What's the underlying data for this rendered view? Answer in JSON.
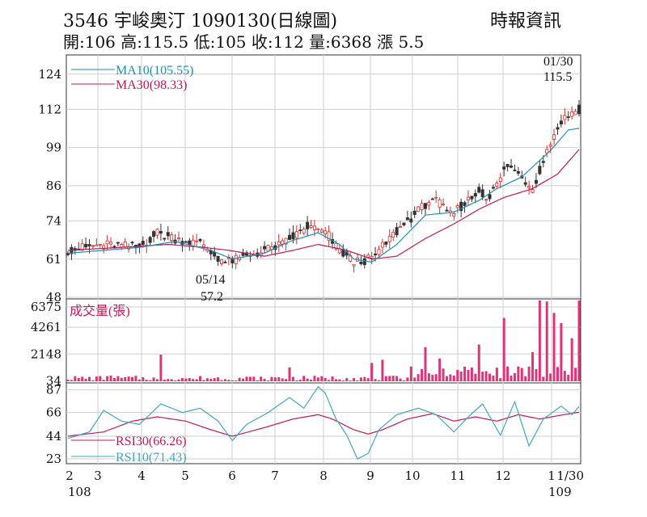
{
  "header": {
    "title": "3546  宇峻奧汀 1090130(日線圖)",
    "source": "時報資訊",
    "stats": "開:106 高:115.5 低:105 收:112 量:6368 漲 5.5"
  },
  "colors": {
    "ma10": "#1f8fb0",
    "ma30": "#c2185b",
    "volume": "#e0347a",
    "rsi30": "#c2185b",
    "rsi10": "#3fa7c2",
    "candle_up": "#d32f2f",
    "candle_down": "#333333",
    "grid": "#cfcfcf"
  },
  "chart_data": [
    {
      "type": "candlestick",
      "legend": [
        "MA10(105.55)",
        "MA30(98.33)"
      ],
      "ylim": [
        48,
        130
      ],
      "yticks": [
        "124",
        "112",
        "99",
        "86",
        "74",
        "61",
        "48"
      ],
      "annotations": [
        {
          "date_label": "01/30",
          "value_label": "115.5",
          "note": "high"
        },
        {
          "date_label": "05/14",
          "value_label": "57.2",
          "note": "low"
        }
      ],
      "anchors": [
        [
          0,
          64
        ],
        [
          10,
          66
        ],
        [
          20,
          65
        ],
        [
          25,
          70
        ],
        [
          30,
          68
        ],
        [
          38,
          66
        ],
        [
          40,
          63
        ],
        [
          44,
          60
        ],
        [
          48,
          61
        ],
        [
          55,
          64
        ],
        [
          60,
          66
        ],
        [
          67,
          72
        ],
        [
          70,
          71
        ],
        [
          73,
          69
        ],
        [
          75,
          65
        ],
        [
          80,
          60
        ],
        [
          85,
          61
        ],
        [
          90,
          68
        ],
        [
          95,
          74
        ],
        [
          102,
          82
        ],
        [
          107,
          76
        ],
        [
          110,
          79
        ],
        [
          115,
          84
        ],
        [
          118,
          82
        ],
        [
          123,
          93
        ],
        [
          127,
          89
        ],
        [
          130,
          85
        ],
        [
          135,
          101
        ],
        [
          138,
          108
        ],
        [
          141,
          111
        ],
        [
          143,
          112
        ]
      ],
      "ma10_anchors": [
        [
          0,
          63
        ],
        [
          20,
          65
        ],
        [
          30,
          67
        ],
        [
          40,
          64
        ],
        [
          46,
          61
        ],
        [
          55,
          63
        ],
        [
          62,
          67
        ],
        [
          70,
          70
        ],
        [
          76,
          66
        ],
        [
          80,
          61
        ],
        [
          85,
          60
        ],
        [
          92,
          66
        ],
        [
          100,
          76
        ],
        [
          108,
          77
        ],
        [
          115,
          81
        ],
        [
          120,
          85
        ],
        [
          127,
          89
        ],
        [
          135,
          98
        ],
        [
          140,
          105
        ],
        [
          143,
          105.55
        ]
      ],
      "ma30_anchors": [
        [
          0,
          64
        ],
        [
          15,
          65
        ],
        [
          28,
          66
        ],
        [
          38,
          65
        ],
        [
          45,
          64
        ],
        [
          55,
          62
        ],
        [
          63,
          64
        ],
        [
          70,
          66
        ],
        [
          78,
          64
        ],
        [
          85,
          61
        ],
        [
          92,
          62
        ],
        [
          100,
          68
        ],
        [
          108,
          73
        ],
        [
          115,
          78
        ],
        [
          122,
          82
        ],
        [
          130,
          85
        ],
        [
          137,
          90
        ],
        [
          143,
          98.33
        ]
      ]
    },
    {
      "type": "bar",
      "title": "成交量(張)",
      "ylim": [
        0,
        6375
      ],
      "yticks": [
        "6375",
        "4261",
        "2148",
        "34"
      ],
      "values_by_day": [
        [
          0,
          120
        ],
        [
          12,
          450
        ],
        [
          25,
          160
        ],
        [
          26,
          2100
        ],
        [
          35,
          180
        ],
        [
          55,
          200
        ],
        [
          62,
          1100
        ],
        [
          78,
          250
        ],
        [
          85,
          1450
        ],
        [
          88,
          1700
        ],
        [
          95,
          300
        ],
        [
          100,
          2700
        ],
        [
          104,
          1800
        ],
        [
          108,
          450
        ],
        [
          112,
          900
        ],
        [
          115,
          2900
        ],
        [
          122,
          5000
        ],
        [
          130,
          2300
        ],
        [
          132,
          6375
        ],
        [
          134,
          6300
        ],
        [
          136,
          5400
        ],
        [
          138,
          4600
        ],
        [
          141,
          3400
        ],
        [
          143,
          6368
        ]
      ]
    },
    {
      "type": "line",
      "legend": [
        "RSI30(66.26)",
        "RSI10(71.43)"
      ],
      "ylim": [
        20,
        92
      ],
      "yticks": [
        "87",
        "66",
        "44",
        "23"
      ],
      "rsi30_anchors": [
        [
          0,
          44
        ],
        [
          10,
          48
        ],
        [
          18,
          58
        ],
        [
          25,
          62
        ],
        [
          33,
          58
        ],
        [
          40,
          50
        ],
        [
          46,
          44
        ],
        [
          55,
          52
        ],
        [
          63,
          60
        ],
        [
          70,
          64
        ],
        [
          74,
          60
        ],
        [
          80,
          50
        ],
        [
          84,
          46
        ],
        [
          88,
          50
        ],
        [
          95,
          60
        ],
        [
          102,
          65
        ],
        [
          108,
          58
        ],
        [
          114,
          62
        ],
        [
          120,
          58
        ],
        [
          126,
          64
        ],
        [
          132,
          60
        ],
        [
          137,
          63
        ],
        [
          143,
          66.26
        ]
      ],
      "rsi10_anchors": [
        [
          0,
          42
        ],
        [
          6,
          48
        ],
        [
          10,
          68
        ],
        [
          15,
          58
        ],
        [
          20,
          55
        ],
        [
          26,
          74
        ],
        [
          32,
          66
        ],
        [
          37,
          70
        ],
        [
          42,
          58
        ],
        [
          46,
          40
        ],
        [
          50,
          55
        ],
        [
          56,
          66
        ],
        [
          62,
          80
        ],
        [
          66,
          70
        ],
        [
          70,
          90
        ],
        [
          72,
          84
        ],
        [
          75,
          60
        ],
        [
          78,
          45
        ],
        [
          81,
          23
        ],
        [
          84,
          28
        ],
        [
          87,
          50
        ],
        [
          92,
          64
        ],
        [
          98,
          70
        ],
        [
          103,
          64
        ],
        [
          108,
          48
        ],
        [
          112,
          62
        ],
        [
          116,
          74
        ],
        [
          121,
          45
        ],
        [
          125,
          76
        ],
        [
          129,
          35
        ],
        [
          133,
          60
        ],
        [
          138,
          72
        ],
        [
          141,
          64
        ],
        [
          143,
          71.43
        ]
      ]
    }
  ],
  "x_axis": {
    "month_labels": [
      "2",
      "3",
      "4",
      "5",
      "6",
      "7",
      "8",
      "9",
      "10",
      "11",
      "12",
      "1",
      "1/30"
    ],
    "year_labels": [
      "108",
      "109"
    ]
  }
}
